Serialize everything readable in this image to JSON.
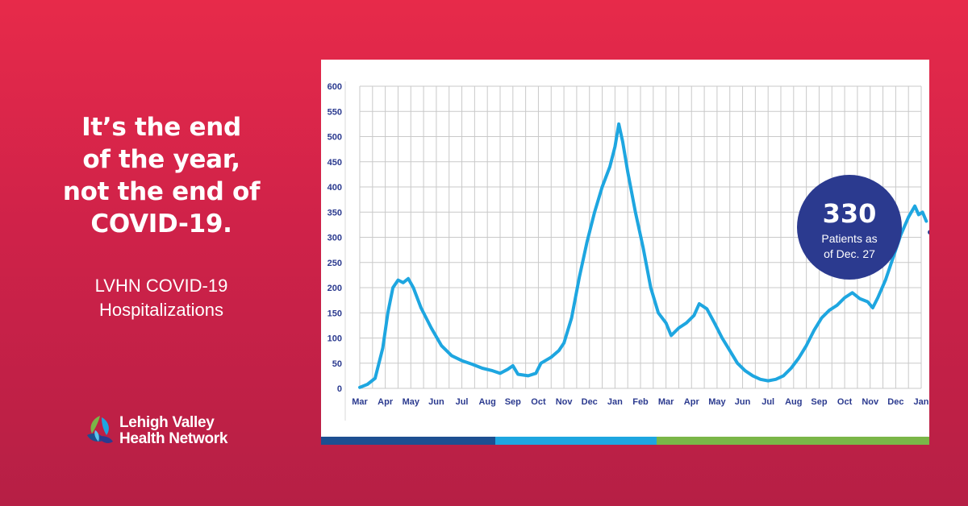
{
  "headline": {
    "lines": [
      "It’s the end",
      "of the year,",
      "not the end of",
      "COVID-19."
    ]
  },
  "subtitle": {
    "lines": [
      "LVHN COVID-19",
      "Hospitalizations"
    ]
  },
  "logo": {
    "line1": "Lehigh Valley",
    "line2": "Health Network",
    "mark_icon": "lvhn-leaf-logo-icon"
  },
  "colors": {
    "background_top": "#e72a4a",
    "background_bottom": "#b61f45",
    "line": "#1ea6e0",
    "axis_text": "#2b3a8f",
    "callout": "#2b3a8f",
    "bar_dark": "#1d4f91",
    "bar_light": "#1ea6e0",
    "bar_green": "#7ab648"
  },
  "callout": {
    "value": "330",
    "line1": "Patients as",
    "line2": "of Dec. 27"
  },
  "chart_data": {
    "type": "line",
    "title": "",
    "xlabel": "",
    "ylabel": "",
    "ylim": [
      0,
      600
    ],
    "yticks": [
      0,
      50,
      100,
      150,
      200,
      250,
      300,
      350,
      400,
      450,
      500,
      550,
      600
    ],
    "xticks": [
      "Mar",
      "Apr",
      "May",
      "Jun",
      "Jul",
      "Aug",
      "Sep",
      "Oct",
      "Nov",
      "Dec",
      "Jan",
      "Feb",
      "Mar",
      "Apr",
      "May",
      "Jun",
      "Jul",
      "Aug",
      "Sep",
      "Oct",
      "Nov",
      "Dec",
      "Jan"
    ],
    "grid": true,
    "legend": "none",
    "series": [
      {
        "values": [
          [
            0,
            2
          ],
          [
            0.3,
            8
          ],
          [
            0.6,
            20
          ],
          [
            0.9,
            80
          ],
          [
            1.1,
            150
          ],
          [
            1.3,
            200
          ],
          [
            1.5,
            215
          ],
          [
            1.7,
            210
          ],
          [
            1.9,
            218
          ],
          [
            2.1,
            200
          ],
          [
            2.4,
            160
          ],
          [
            2.8,
            120
          ],
          [
            3.2,
            85
          ],
          [
            3.6,
            65
          ],
          [
            4.0,
            55
          ],
          [
            4.4,
            48
          ],
          [
            4.8,
            40
          ],
          [
            5.2,
            35
          ],
          [
            5.5,
            30
          ],
          [
            5.8,
            38
          ],
          [
            6.0,
            45
          ],
          [
            6.2,
            28
          ],
          [
            6.6,
            25
          ],
          [
            6.9,
            30
          ],
          [
            7.1,
            50
          ],
          [
            7.5,
            62
          ],
          [
            7.8,
            75
          ],
          [
            8.0,
            90
          ],
          [
            8.3,
            140
          ],
          [
            8.6,
            220
          ],
          [
            8.9,
            290
          ],
          [
            9.2,
            350
          ],
          [
            9.5,
            400
          ],
          [
            9.8,
            440
          ],
          [
            10.0,
            480
          ],
          [
            10.15,
            525
          ],
          [
            10.3,
            490
          ],
          [
            10.5,
            430
          ],
          [
            10.8,
            350
          ],
          [
            11.1,
            280
          ],
          [
            11.4,
            200
          ],
          [
            11.7,
            150
          ],
          [
            12.0,
            130
          ],
          [
            12.2,
            105
          ],
          [
            12.5,
            120
          ],
          [
            12.8,
            130
          ],
          [
            13.1,
            145
          ],
          [
            13.3,
            168
          ],
          [
            13.6,
            158
          ],
          [
            13.9,
            130
          ],
          [
            14.2,
            100
          ],
          [
            14.5,
            75
          ],
          [
            14.8,
            50
          ],
          [
            15.1,
            35
          ],
          [
            15.4,
            25
          ],
          [
            15.7,
            18
          ],
          [
            16.0,
            15
          ],
          [
            16.3,
            18
          ],
          [
            16.6,
            25
          ],
          [
            16.9,
            40
          ],
          [
            17.2,
            60
          ],
          [
            17.5,
            85
          ],
          [
            17.8,
            115
          ],
          [
            18.1,
            140
          ],
          [
            18.4,
            155
          ],
          [
            18.7,
            165
          ],
          [
            19.0,
            180
          ],
          [
            19.3,
            190
          ],
          [
            19.6,
            178
          ],
          [
            19.9,
            172
          ],
          [
            20.1,
            160
          ],
          [
            20.3,
            180
          ],
          [
            20.6,
            215
          ],
          [
            20.9,
            260
          ],
          [
            21.2,
            305
          ],
          [
            21.5,
            340
          ],
          [
            21.75,
            362
          ],
          [
            21.9,
            345
          ],
          [
            22.05,
            350
          ],
          [
            22.2,
            332
          ]
        ]
      }
    ],
    "annotation_point": {
      "x": 22.35,
      "y": 310
    }
  }
}
